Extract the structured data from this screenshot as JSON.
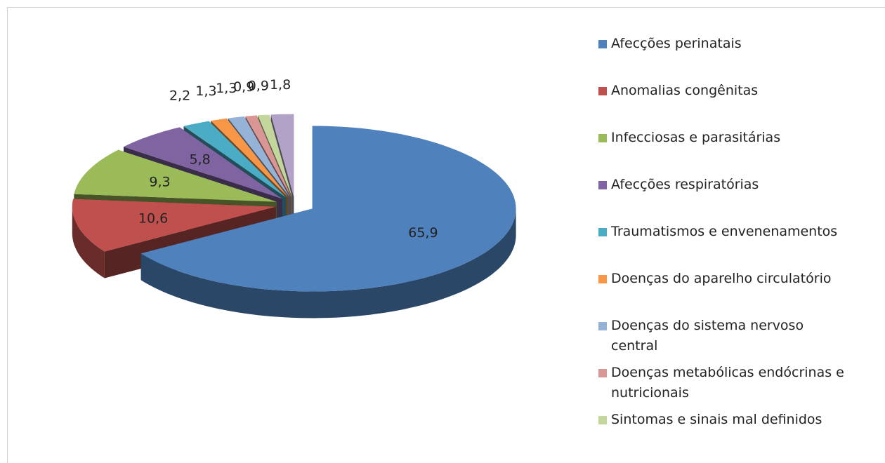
{
  "chart_data": {
    "type": "pie",
    "categories": [
      "Afecções perinatais",
      "Anomalias congênitas",
      "Infecciosas e parasitárias",
      "Afecções respiratórias",
      "Traumatismos e envenenamentos",
      "Doenças do aparelho circulatório",
      "Doenças do sistema nervoso central",
      "Doenças metabólicas endócrinas e nutricionais",
      "Sintomas e sinais mal definidos",
      null
    ],
    "values": [
      65.9,
      10.6,
      9.3,
      5.8,
      2.2,
      1.3,
      1.3,
      0.9,
      0.9,
      1.8
    ],
    "value_labels": [
      "65,9",
      "10,6",
      "9,3",
      "5,8",
      "2,2",
      "1,3",
      "1,3",
      "0,9",
      "0,9",
      "1,8"
    ],
    "colors": [
      "#4f81bd",
      "#c0504d",
      "#9bbb59",
      "#8064a2",
      "#4bacc6",
      "#f79646",
      "#95b3d7",
      "#d99694",
      "#c3d69b",
      "#b2a2c7"
    ],
    "legend": "right"
  }
}
